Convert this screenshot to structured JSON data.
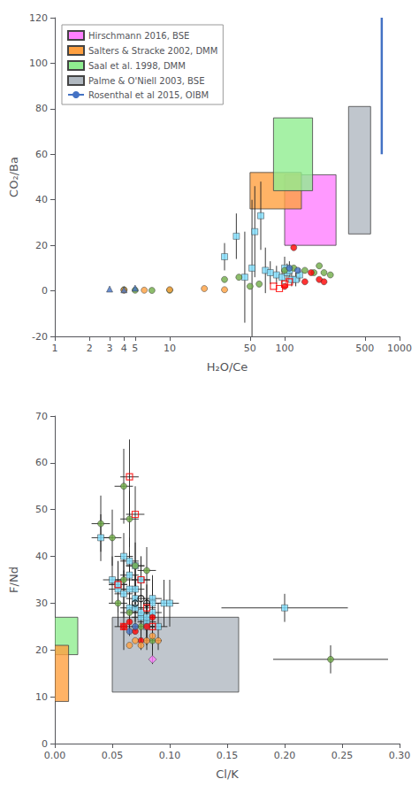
{
  "chart_data": [
    {
      "type": "scatter",
      "xlabel": "H₂O/Ce",
      "ylabel": "CO₂/Ba",
      "log": "x",
      "xlim": [
        1,
        1000
      ],
      "ylim": [
        -20,
        120
      ],
      "xticks": [
        1,
        2,
        3,
        4,
        5,
        10,
        50,
        100,
        500,
        1000
      ],
      "yticks": [
        -20,
        0,
        20,
        40,
        60,
        80,
        100,
        120
      ],
      "grid": false,
      "legend": "upper left",
      "boxes": [
        {
          "name": "Hirschmann 2016, BSE",
          "color": "#FF80FF",
          "x0": 100,
          "x1": 280,
          "y0": 20,
          "y1": 51
        },
        {
          "name": "Salters & Stracke 2002, DMM",
          "color": "#FFA040",
          "x0": 50,
          "x1": 140,
          "y0": 36,
          "y1": 52
        },
        {
          "name": "Saal et al. 1998, DMM",
          "color": "#90EE90",
          "x0": 80,
          "x1": 175,
          "y0": 44,
          "y1": 76
        },
        {
          "name": "Palme & O'Niell 2003, BSE",
          "color": "#B0B8C0",
          "x0": 360,
          "x1": 560,
          "y0": 25,
          "y1": 81
        }
      ],
      "series": [
        {
          "name": "Rosenthal et al 2015, OIBM",
          "type": "line",
          "color": "#4472C4",
          "x": [
            700,
            700
          ],
          "y": [
            60,
            120
          ]
        },
        {
          "type": "scatter",
          "marker": "square",
          "color": "#80DFFF",
          "x": [
            30,
            38,
            45,
            52,
            55,
            62,
            68,
            75,
            85,
            95,
            105,
            115,
            125,
            135,
            100,
            110
          ],
          "y": [
            15,
            24,
            6,
            10,
            26,
            33,
            9,
            8,
            7,
            6,
            8,
            5,
            5,
            7,
            10,
            9
          ],
          "y_err": [
            6,
            10,
            20,
            30,
            20,
            15,
            10,
            5,
            4,
            3,
            4,
            3,
            3,
            3,
            5,
            4
          ]
        },
        {
          "type": "scatter",
          "marker": "circle",
          "color": "#70AD47",
          "x": [
            4,
            5,
            7,
            10,
            30,
            40,
            50,
            60,
            100,
            120,
            150,
            180,
            200,
            220,
            250
          ],
          "y": [
            0.5,
            0.3,
            0.2,
            0.3,
            5,
            6,
            2,
            3,
            9,
            10,
            9,
            8,
            11,
            8,
            7
          ]
        },
        {
          "type": "scatter",
          "marker": "circle",
          "color": "#FF0000",
          "x": [
            100,
            120,
            150,
            170,
            200,
            220
          ],
          "y": [
            2,
            19,
            4,
            8,
            5,
            4
          ]
        },
        {
          "type": "scatter",
          "marker": "circle",
          "color": "#FFA040",
          "x": [
            4,
            6,
            10,
            20,
            30
          ],
          "y": [
            0.3,
            0.3,
            0.5,
            1,
            0.5
          ]
        },
        {
          "type": "scatter",
          "marker": "triangle",
          "color": "#4472C4",
          "x": [
            3,
            4,
            5
          ],
          "y": [
            0.8,
            0.5,
            1.2
          ]
        },
        {
          "type": "scatter",
          "marker": "open square",
          "color": "#FF0000",
          "x": [
            80,
            90,
            100,
            110
          ],
          "y": [
            2,
            1,
            3,
            4
          ]
        },
        {
          "type": "scatter",
          "marker": "circle",
          "color": "#4472C4",
          "x": [
            110,
            130
          ],
          "y": [
            10,
            9
          ]
        }
      ]
    },
    {
      "type": "scatter",
      "xlabel": "Cl/K",
      "ylabel": "F/Nd",
      "xlim": [
        0.0,
        0.3
      ],
      "ylim": [
        0,
        70
      ],
      "xticks": [
        {
          "value": 0.0,
          "label": "0.00"
        },
        {
          "value": 0.05,
          "label": "0.05"
        },
        {
          "value": 0.1,
          "label": "0.10"
        },
        {
          "value": 0.15,
          "label": "0.15"
        },
        {
          "value": 0.2,
          "label": "0.20"
        },
        {
          "value": 0.25,
          "label": "0.25"
        },
        {
          "value": 0.3,
          "label": "0.30"
        }
      ],
      "yticks": [
        0,
        10,
        20,
        30,
        40,
        50,
        60,
        70
      ],
      "grid": false,
      "boxes": [
        {
          "color": "#90EE90",
          "x0": 0.0,
          "x1": 0.02,
          "y0": 19,
          "y1": 27
        },
        {
          "color": "#FFA040",
          "x0": 0.0,
          "x1": 0.012,
          "y0": 9,
          "y1": 21
        },
        {
          "color": "#B0B8C0",
          "x0": 0.05,
          "x1": 0.16,
          "y0": 11,
          "y1": 27
        }
      ],
      "series": [
        {
          "type": "scatter",
          "marker": "square",
          "color": "#80DFFF",
          "x": [
            0.04,
            0.05,
            0.055,
            0.06,
            0.065,
            0.065,
            0.065,
            0.07,
            0.07,
            0.07,
            0.075,
            0.075,
            0.075,
            0.08,
            0.08,
            0.085,
            0.085,
            0.09,
            0.095,
            0.1,
            0.06,
            0.055,
            0.08,
            0.085,
            0.065,
            0.07
          ],
          "y": [
            44,
            35,
            33,
            32,
            29,
            39,
            36,
            31,
            33,
            38,
            27,
            35,
            28,
            26,
            25,
            28,
            31,
            25,
            30,
            30,
            40,
            34,
            27,
            30,
            33,
            29
          ],
          "x_err": [
            0.008,
            0.008,
            0.008,
            0.008,
            0.008,
            0.008,
            0.008,
            0.008,
            0.008,
            0.008,
            0.008,
            0.008,
            0.008,
            0.008,
            0.008,
            0.008,
            0.008,
            0.008,
            0.008,
            0.008,
            0.008,
            0.008,
            0.008,
            0.008,
            0.008,
            0.008
          ],
          "y_err": [
            5,
            5,
            5,
            5,
            5,
            5,
            5,
            5,
            5,
            5,
            5,
            5,
            5,
            5,
            5,
            5,
            5,
            5,
            5,
            5,
            5,
            5,
            5,
            5,
            5,
            5
          ]
        },
        {
          "type": "scatter",
          "marker": "square",
          "color": "#80DFFF",
          "x": [
            0.2
          ],
          "y": [
            29
          ],
          "x_err": [
            0.055
          ],
          "y_err": [
            3
          ]
        },
        {
          "type": "scatter",
          "marker": "circle",
          "color": "#70AD47",
          "x": [
            0.04,
            0.05,
            0.055,
            0.06,
            0.065,
            0.065,
            0.07,
            0.075,
            0.08,
            0.085,
            0.06
          ],
          "y": [
            47,
            44,
            30,
            55,
            48,
            28,
            38,
            25,
            37,
            22,
            35
          ],
          "x_err": [
            0.008,
            0.008,
            0.008,
            0.008,
            0.008,
            0.008,
            0.008,
            0.008,
            0.008,
            0.008,
            0.008
          ],
          "y_err": [
            6,
            6,
            5,
            8,
            6,
            5,
            5,
            5,
            5,
            5,
            5
          ]
        },
        {
          "type": "scatter",
          "marker": "circle",
          "color": "#70AD47",
          "x": [
            0.24
          ],
          "y": [
            18
          ],
          "x_err": [
            0.05
          ],
          "y_err": [
            3
          ]
        },
        {
          "type": "scatter",
          "marker": "circle",
          "color": "#FF0000",
          "x": [
            0.06,
            0.065,
            0.07,
            0.075,
            0.08,
            0.085
          ],
          "y": [
            25,
            26,
            24,
            22,
            25,
            27
          ]
        },
        {
          "type": "scatter",
          "marker": "circle",
          "color": "#FFA040",
          "x": [
            0.065,
            0.07,
            0.075,
            0.08,
            0.085,
            0.09
          ],
          "y": [
            21,
            22,
            21,
            22,
            23,
            22
          ]
        },
        {
          "type": "scatter",
          "marker": "circle",
          "color": "#4472C4",
          "x": [
            0.065,
            0.07
          ],
          "y": [
            24,
            25
          ]
        },
        {
          "type": "scatter",
          "marker": "open circle",
          "color": "#000000",
          "x": [
            0.07,
            0.075,
            0.08
          ],
          "y": [
            30,
            31,
            30
          ]
        },
        {
          "type": "scatter",
          "marker": "open square",
          "color": "#FF0000",
          "x": [
            0.055,
            0.06,
            0.065,
            0.07,
            0.075,
            0.08,
            0.085
          ],
          "y": [
            34,
            25,
            57,
            49,
            35,
            29,
            25
          ],
          "x_err": [
            0.008,
            0.008,
            0.008,
            0.008,
            0.008,
            0.008,
            0.008
          ],
          "y_err": [
            5,
            5,
            8,
            6,
            5,
            5,
            5
          ]
        },
        {
          "type": "scatter",
          "marker": "diamond",
          "color": "#FF80FF",
          "x": [
            0.085
          ],
          "y": [
            18
          ]
        }
      ]
    }
  ]
}
